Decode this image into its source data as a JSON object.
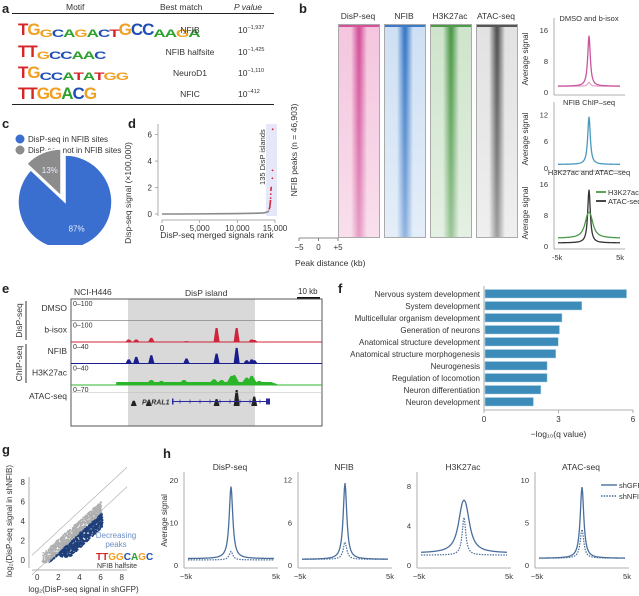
{
  "panels": {
    "a": {
      "label": "a",
      "headers": [
        "Motif",
        "Best match",
        "P value"
      ],
      "rows": [
        {
          "motif": "TGGCAGACTGCCAAGA",
          "match": "NFIB",
          "pbase": "10",
          "pexp": "−1,937"
        },
        {
          "motif": "TTGCCAAC",
          "match": "NFIB halfsite",
          "pbase": "10",
          "pexp": "−1,425"
        },
        {
          "motif": "TGCCATATGG",
          "match": "NeuroD1",
          "pbase": "10",
          "pexp": "−1,110"
        },
        {
          "motif": "TTGGACG",
          "match": "NFIC",
          "pbase": "10",
          "pexp": "−412"
        }
      ],
      "base_colors": {
        "A": "#2ca02c",
        "C": "#1f4fb4",
        "G": "#f0a020",
        "T": "#d62728"
      }
    },
    "b": {
      "label": "b",
      "heatmaps": [
        {
          "title": "DisP-seq",
          "color": "#d4529a",
          "bg": "#f4c6de"
        },
        {
          "title": "NFIB",
          "color": "#3b7ac8",
          "bg": "#cfe0f4"
        },
        {
          "title": "H3K27ac",
          "color": "#4f9a4a",
          "bg": "#cfe4cc"
        },
        {
          "title": "ATAC-seq",
          "color": "#555555",
          "bg": "#e2e2e2"
        }
      ],
      "ylabel": "NFIB peaks (n = 46,903)",
      "xticks": [
        "−5",
        "0",
        "+5"
      ],
      "xlabel": "Peak distance (kb)",
      "profiles": [
        {
          "title": "DMSO and b-isox",
          "yticks": [
            "0",
            "8",
            "16"
          ]
        },
        {
          "title": "NFIB ChIP–seq",
          "yticks": [
            "0",
            "6",
            "12"
          ]
        },
        {
          "title": "H3K27ac and ATAC–seq",
          "yticks": [
            "0",
            "8",
            "16"
          ]
        }
      ],
      "profile_ylabel": "Average signal",
      "profile_xticks": [
        "-5k",
        "5k"
      ],
      "legend": [
        "H3K27ac",
        "ATAC-seq"
      ]
    },
    "c": {
      "label": "c",
      "legend": [
        "DisP-seq in NFIB sites",
        "DisP-seq not in NFIB sites"
      ]
    },
    "d": {
      "label": "d",
      "ylabel": "Disp-seq signal (×100,000)",
      "xlabel": "DisP-seq merged signals rank",
      "annotation": "135 DisP islands",
      "xticks": [
        "0",
        "5,000",
        "10,000",
        "15,000"
      ],
      "yticks": [
        "0",
        "2",
        "4",
        "6"
      ]
    },
    "e": {
      "label": "e",
      "cell_line": "NCI-H446",
      "island_label": "DisP island",
      "scale_label": "10 kb",
      "group_labels": [
        "DisP-seq",
        "ChIP-seq"
      ],
      "tracks": [
        {
          "name": "DMSO",
          "range": "0–100",
          "color": "#888888"
        },
        {
          "name": "b-isox",
          "range": "0–100",
          "color": "#d0243a"
        },
        {
          "name": "NFIB",
          "range": "0–40",
          "color": "#1a1e8c"
        },
        {
          "name": "H3K27ac",
          "range": "0–40",
          "color": "#2bb52b"
        },
        {
          "name": "ATAC-seq",
          "range": "0–70",
          "color": "#222222"
        }
      ],
      "gene": "PARAL1"
    },
    "f": {
      "label": "f"
    },
    "g": {
      "label": "g",
      "ylabel": "log₂(DisP-seq signal in shNFIB)",
      "xlabel": "log₂(DisP-seq signal in shGFP)",
      "annotation1": "Decreasing",
      "annotation2": "peaks",
      "motif": "TTGGCAGC",
      "motif_label": "NFIB halfsite",
      "ticks": [
        "0",
        "2",
        "4",
        "6",
        "8"
      ]
    },
    "h": {
      "label": "h",
      "ylabel": "Average signal",
      "xticks": [
        "−5k",
        "5k"
      ],
      "legend": [
        "shGFP",
        "shNFIB"
      ],
      "panels": [
        {
          "title": "DisP-seq",
          "yticks": [
            "0",
            "10",
            "20"
          ]
        },
        {
          "title": "NFIB",
          "yticks": [
            "0",
            "6",
            "12"
          ]
        },
        {
          "title": "H3K27ac",
          "yticks": [
            "0",
            "4",
            "8"
          ]
        },
        {
          "title": "ATAC-seq",
          "yticks": [
            "0",
            "5",
            "10"
          ]
        }
      ]
    }
  },
  "chart_data": [
    {
      "id": "c",
      "type": "pie",
      "labels": [
        "DisP-seq in NFIB sites",
        "DisP-seq not in NFIB sites"
      ],
      "values": [
        87,
        13
      ],
      "value_labels": [
        "87%",
        "13%"
      ],
      "colors": [
        "#3a6fd0",
        "#8c8c8c"
      ],
      "legend": "top-left"
    },
    {
      "id": "d",
      "type": "scatter",
      "title": "",
      "xlabel": "DisP-seq merged signals rank",
      "ylabel": "Disp-seq signal (×100,000)",
      "xlim": [
        0,
        15000
      ],
      "ylim": [
        0,
        6.5
      ],
      "curve": [
        [
          0,
          0.0
        ],
        [
          2000,
          0.0
        ],
        [
          5000,
          0.01
        ],
        [
          8000,
          0.02
        ],
        [
          10000,
          0.03
        ],
        [
          12000,
          0.05
        ],
        [
          13500,
          0.08
        ],
        [
          14000,
          0.15
        ],
        [
          14200,
          0.25
        ]
      ],
      "islands": [
        [
          14250,
          0.4
        ],
        [
          14300,
          0.5
        ],
        [
          14320,
          0.6
        ],
        [
          14340,
          0.7
        ],
        [
          14360,
          0.8
        ],
        [
          14380,
          0.9
        ],
        [
          14400,
          1.0
        ],
        [
          14420,
          1.2
        ],
        [
          14440,
          1.5
        ],
        [
          14460,
          1.8
        ],
        [
          14480,
          1.9
        ],
        [
          14500,
          2.0
        ],
        [
          14520,
          2.7
        ],
        [
          14540,
          3.3
        ],
        [
          14560,
          6.4
        ]
      ],
      "annotation": "135 DisP islands"
    },
    {
      "id": "f",
      "type": "bar",
      "orientation": "horizontal",
      "categories": [
        "Nervous system development",
        "System development",
        "Multicellular organism development",
        "Generation of neurons",
        "Anatomical structure development",
        "Anatomical structure morphogenesis",
        "Neurogenesis",
        "Regulation of locomotion",
        "Neuron differentiation",
        "Neuron development"
      ],
      "values": [
        5.7,
        3.9,
        3.1,
        3.0,
        2.95,
        2.85,
        2.5,
        2.5,
        2.25,
        1.95
      ],
      "xlabel": "−log₁₀(q value)",
      "xlim": [
        0,
        6
      ],
      "xticks": [
        "0",
        "3",
        "6"
      ],
      "color": "#3d8bb8"
    },
    {
      "id": "g",
      "type": "scatter",
      "xlabel": "log₂(DisP-seq signal in shGFP)",
      "ylabel": "log₂(DisP-seq signal in shNFIB)",
      "xlim": [
        -0.5,
        8.5
      ],
      "ylim": [
        -0.5,
        8.5
      ],
      "series": [
        {
          "name": "All peaks",
          "color": "#b0b0b0"
        },
        {
          "name": "Decreasing peaks",
          "color": "#1f3f7a"
        }
      ],
      "diagonal_offsets": [
        1,
        -1
      ]
    },
    {
      "id": "h",
      "type": "line",
      "series_names": [
        "shGFP",
        "shNFIB"
      ],
      "x": [
        "-5k",
        "5k"
      ],
      "panels": [
        {
          "title": "DisP-seq",
          "ylim": [
            0,
            21
          ],
          "shGFP": {
            "base": 1.5,
            "peak": 18.5
          },
          "shNFIB": {
            "base": 1.2,
            "peak": 3.2
          }
        },
        {
          "title": "NFIB",
          "ylim": [
            0,
            12.5
          ],
          "shGFP": {
            "base": 0.8,
            "peak": 11.5
          },
          "shNFIB": {
            "base": 0.8,
            "peak": 3.2
          }
        },
        {
          "title": "H3K27ac",
          "ylim": [
            0,
            9
          ],
          "shGFP": {
            "base": 1.2,
            "peak": 7.2,
            "double": true
          },
          "shNFIB": {
            "base": 1.0,
            "peak": 4.8
          }
        },
        {
          "title": "ATAC-seq",
          "ylim": [
            0,
            10.5
          ],
          "shGFP": {
            "base": 0.8,
            "peak": 9.2
          },
          "shNFIB": {
            "base": 0.8,
            "peak": 4.2
          }
        }
      ]
    },
    {
      "id": "b-profiles",
      "type": "line",
      "panels": [
        {
          "title": "DMSO and b-isox",
          "ylim": [
            0,
            17
          ],
          "series": [
            {
              "name": "b-isox",
              "color": "#c9559e",
              "base": 1.5,
              "peak": 14.5
            },
            {
              "name": "DMSO",
              "color": "#e2a9cc",
              "base": 1.5,
              "peak": 2.5
            }
          ]
        },
        {
          "title": "NFIB ChIP–seq",
          "ylim": [
            0,
            13
          ],
          "series": [
            {
              "name": "NFIB",
              "color": "#4a98c0",
              "base": 0.8,
              "peak": 11.5
            }
          ]
        },
        {
          "title": "H3K27ac and ATAC–seq",
          "ylim": [
            0,
            17
          ],
          "series": [
            {
              "name": "H3K27ac",
              "color": "#4f9a4a",
              "base": 2,
              "peak": 9.5,
              "double": true
            },
            {
              "name": "ATAC-seq",
              "color": "#333333",
              "base": 0.8,
              "peak": 14.5
            }
          ]
        }
      ]
    }
  ]
}
